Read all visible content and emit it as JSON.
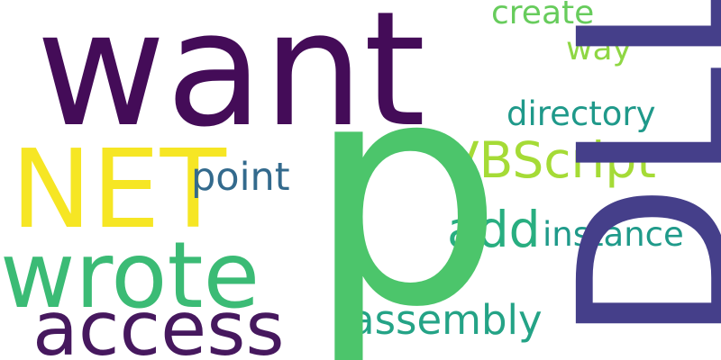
{
  "words": {
    "want": {
      "text": "want",
      "color": "#440c58"
    },
    "p": {
      "text": "p",
      "color": "#4cc56b"
    },
    "dll": {
      "text": "DLL",
      "color": "#453f8a"
    },
    "net": {
      "text": "NET",
      "color": "#f6e624"
    },
    "wrote": {
      "text": "wrote",
      "color": "#3bbb75"
    },
    "access": {
      "text": "access",
      "color": "#46185e"
    },
    "vbscript": {
      "text": "VBScript",
      "color": "#a5db36"
    },
    "point": {
      "text": "point",
      "color": "#336a8d"
    },
    "add": {
      "text": "add",
      "color": "#28ae80"
    },
    "instance": {
      "text": "instance",
      "color": "#1f9a8a"
    },
    "assembly": {
      "text": "assembly",
      "color": "#24a386"
    },
    "directory": {
      "text": "directory",
      "color": "#1f998a"
    },
    "create": {
      "text": "create",
      "color": "#67cc5c"
    },
    "way": {
      "text": "way",
      "color": "#8fd744"
    }
  }
}
